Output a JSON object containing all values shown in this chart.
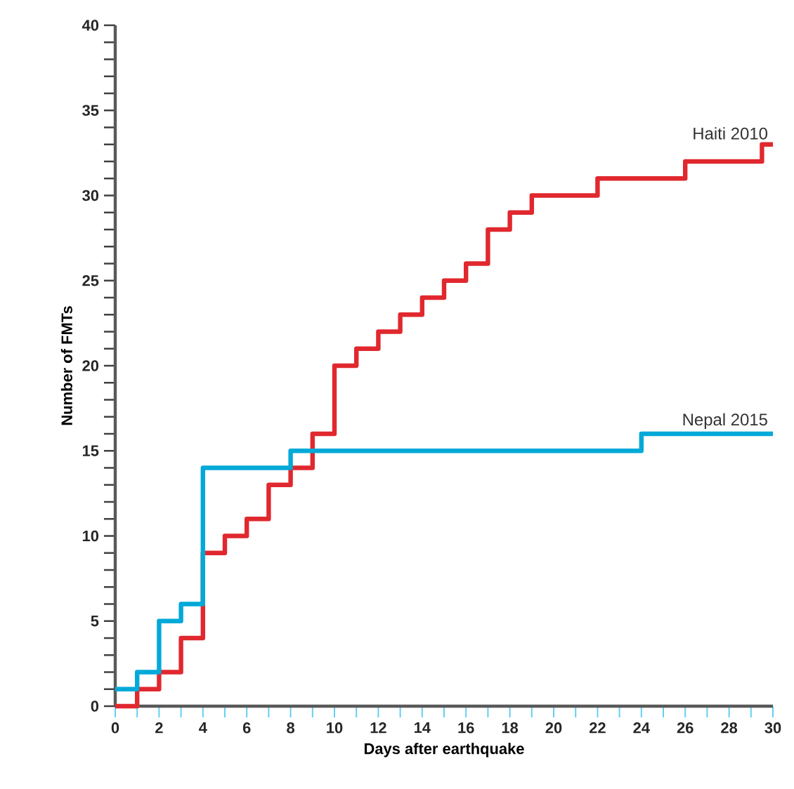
{
  "chart_data": {
    "type": "step",
    "xlabel": "Days after earthquake",
    "ylabel": "Number of FMTs",
    "xlim": [
      0,
      30
    ],
    "ylim": [
      0,
      40
    ],
    "xticks": [
      0,
      {
        "value": 1,
        "label": null
      },
      2,
      {
        "value": 3,
        "label": null
      },
      4,
      {
        "value": 5,
        "label": null
      },
      6,
      {
        "value": 7,
        "label": null
      },
      8,
      {
        "value": 9,
        "label": null
      },
      10,
      {
        "value": 11,
        "label": null
      },
      12,
      {
        "value": 13,
        "label": null
      },
      14,
      {
        "value": 15,
        "label": null
      },
      16,
      {
        "value": 17,
        "label": null
      },
      18,
      {
        "value": 19,
        "label": null
      },
      20,
      {
        "value": 21,
        "label": null
      },
      22,
      {
        "value": 23,
        "label": null
      },
      24,
      {
        "value": 25,
        "label": null
      },
      26,
      {
        "value": 27,
        "label": null
      },
      28,
      {
        "value": 29,
        "label": null
      },
      30
    ],
    "yticks": [
      0,
      5,
      10,
      15,
      20,
      25,
      30,
      35,
      40
    ],
    "grid": false,
    "series": [
      {
        "name": "Haiti 2010",
        "color": "#e0282e",
        "x": [
          0,
          1,
          2,
          3,
          4,
          5,
          6,
          7,
          8,
          9,
          10,
          11,
          12,
          13,
          14,
          15,
          16,
          17,
          18,
          19,
          22,
          26,
          29.5,
          30
        ],
        "values": [
          0,
          1,
          2,
          4,
          9,
          10,
          11,
          13,
          14,
          16,
          20,
          21,
          22,
          23,
          24,
          25,
          26,
          28,
          29,
          30,
          31,
          32,
          33,
          33
        ]
      },
      {
        "name": "Nepal 2015",
        "color": "#00a9d8",
        "x": [
          0,
          1,
          2,
          3,
          4,
          8,
          24,
          30
        ],
        "values": [
          1,
          2,
          5,
          6,
          14,
          15,
          16,
          16
        ]
      }
    ]
  }
}
